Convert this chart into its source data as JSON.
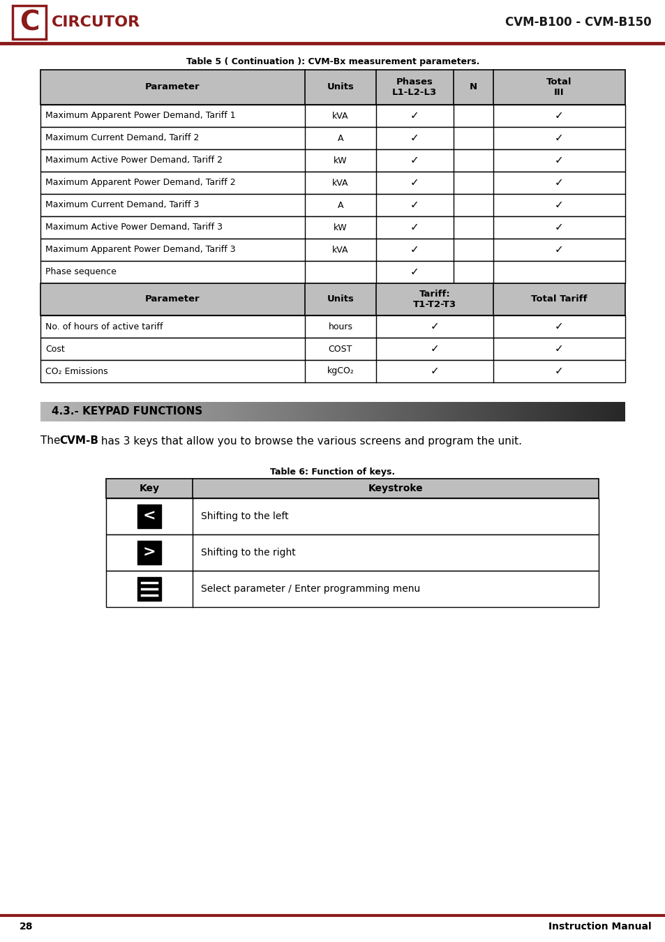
{
  "page_title": "CVM-B100 - CVM-B150",
  "table5_title": "Table 5 ( Continuation ): CVM-Bx measurement parameters.",
  "table5_headers": [
    "Parameter",
    "Units",
    "Phases\nL1-L2-L3",
    "N",
    "Total\nIII"
  ],
  "table5_rows": [
    [
      "Maximum Apparent Power Demand, Tariff 1",
      "kVA",
      true,
      false,
      true
    ],
    [
      "Maximum Current Demand, Tariff 2",
      "A",
      true,
      false,
      true
    ],
    [
      "Maximum Active Power Demand, Tariff 2",
      "kW",
      true,
      false,
      true
    ],
    [
      "Maximum Apparent Power Demand, Tariff 2",
      "kVA",
      true,
      false,
      true
    ],
    [
      "Maximum Current Demand, Tariff 3",
      "A",
      true,
      false,
      true
    ],
    [
      "Maximum Active Power Demand, Tariff 3",
      "kW",
      true,
      false,
      true
    ],
    [
      "Maximum Apparent Power Demand, Tariff 3",
      "kVA",
      true,
      false,
      true
    ],
    [
      "Phase sequence",
      "",
      true,
      false,
      false
    ]
  ],
  "table5_headers2": [
    "Parameter",
    "Units",
    "Tariff:\nT1-T2-T3",
    "Total Tariff"
  ],
  "table5_rows2": [
    [
      "No. of hours of active tariff",
      "hours",
      true,
      true
    ],
    [
      "Cost",
      "COST",
      true,
      true
    ],
    [
      "CO₂ Emissions",
      "kgCO₂",
      true,
      true
    ]
  ],
  "section_title": "4.3.- KEYPAD FUNCTIONS",
  "table6_title": "Table 6: Function of keys.",
  "table6_rows": [
    [
      "left_arrow",
      "Shifting to the left"
    ],
    [
      "right_arrow",
      "Shifting to the right"
    ],
    [
      "menu",
      "Select parameter / Enter programming menu"
    ]
  ],
  "page_number": "28",
  "footer_text": "Instruction Manual",
  "crimson": "#8B1A1A",
  "table_header_bg": "#BEBEBE",
  "white": "#FFFFFF",
  "black": "#000000"
}
